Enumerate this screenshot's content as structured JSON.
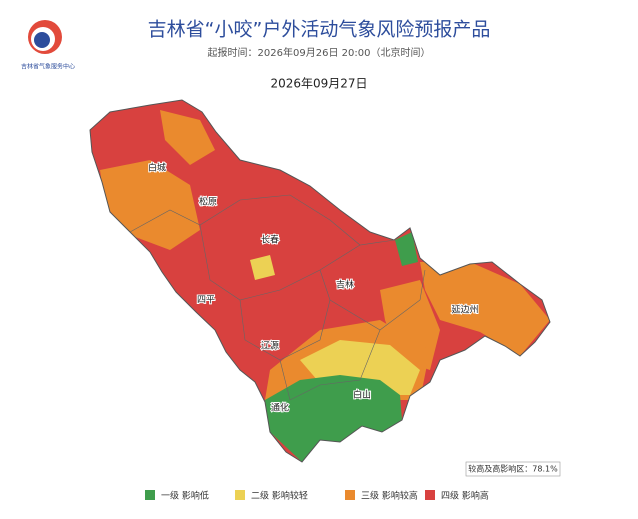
{
  "header": {
    "logo_text": "吉林省气象服务中心",
    "title": "吉林省“小咬”户外活动气象风险预报产品",
    "issue_time": "起报时间：2026年09月26日 20:00（北京时间）",
    "date": "2026年09月27日"
  },
  "map": {
    "labels": [
      "白城",
      "松原",
      "长春",
      "四平",
      "吉林",
      "延边州",
      "辽源",
      "通化",
      "白山"
    ],
    "stat": "较高及高影响区：78.1%"
  },
  "legend": [
    {
      "label": "一级 影响低",
      "color": "#3f9d4c"
    },
    {
      "label": "二级 影响较轻",
      "color": "#ecd154"
    },
    {
      "label": "三级 影响较高",
      "color": "#ea8a2e"
    },
    {
      "label": "四级 影响高",
      "color": "#d8413f"
    }
  ]
}
